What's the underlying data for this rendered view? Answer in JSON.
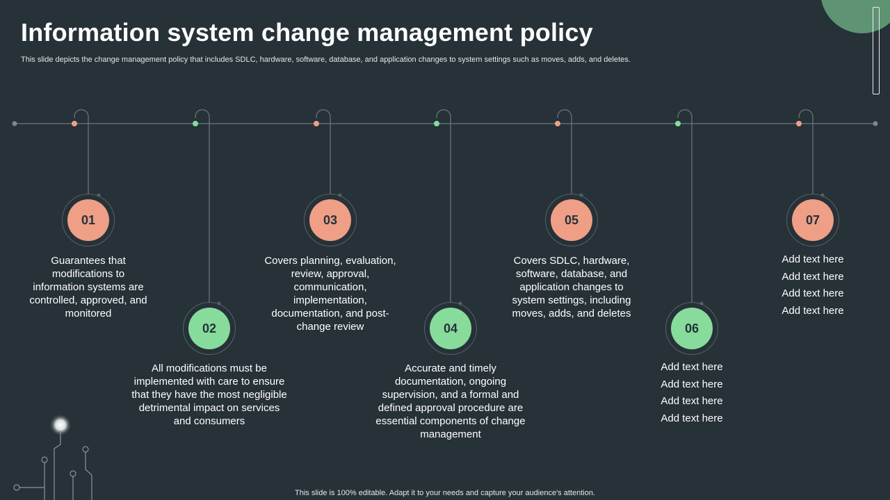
{
  "header": {
    "title": "Information system change management policy",
    "subtitle": "This slide depicts the change management policy that includes SDLC, hardware, software, database, and application changes to system settings such as moves, adds, and deletes."
  },
  "footer": "This slide is 100% editable. Adapt it to your needs and capture your audience's attention.",
  "colors": {
    "background": "#263138",
    "salmon": "#EE9F86",
    "green": "#87DC9B",
    "line": "#6E787E",
    "deco_green": "#5E9373"
  },
  "steps": [
    {
      "number": "01",
      "text": "Guarantees that modifications to information systems are controlled, approved, and monitored"
    },
    {
      "number": "02",
      "text": "All modifications must be implemented with care to ensure that they have the most negligible detrimental impact on services and consumers"
    },
    {
      "number": "03",
      "text": "Covers planning, evaluation, review, approval, communication, implementation, documentation, and post-change review"
    },
    {
      "number": "04",
      "text": "Accurate and timely documentation, ongoing supervision, and a formal and defined approval procedure are essential components of change management"
    },
    {
      "number": "05",
      "text": "Covers SDLC, hardware, software, database, and application changes to system settings, including moves, adds, and deletes"
    },
    {
      "number": "06",
      "lines": [
        "Add text here",
        "Add text here",
        "Add text here",
        "Add text here"
      ]
    },
    {
      "number": "07",
      "lines": [
        "Add text here",
        "Add text here",
        "Add text here",
        "Add text here"
      ]
    }
  ]
}
